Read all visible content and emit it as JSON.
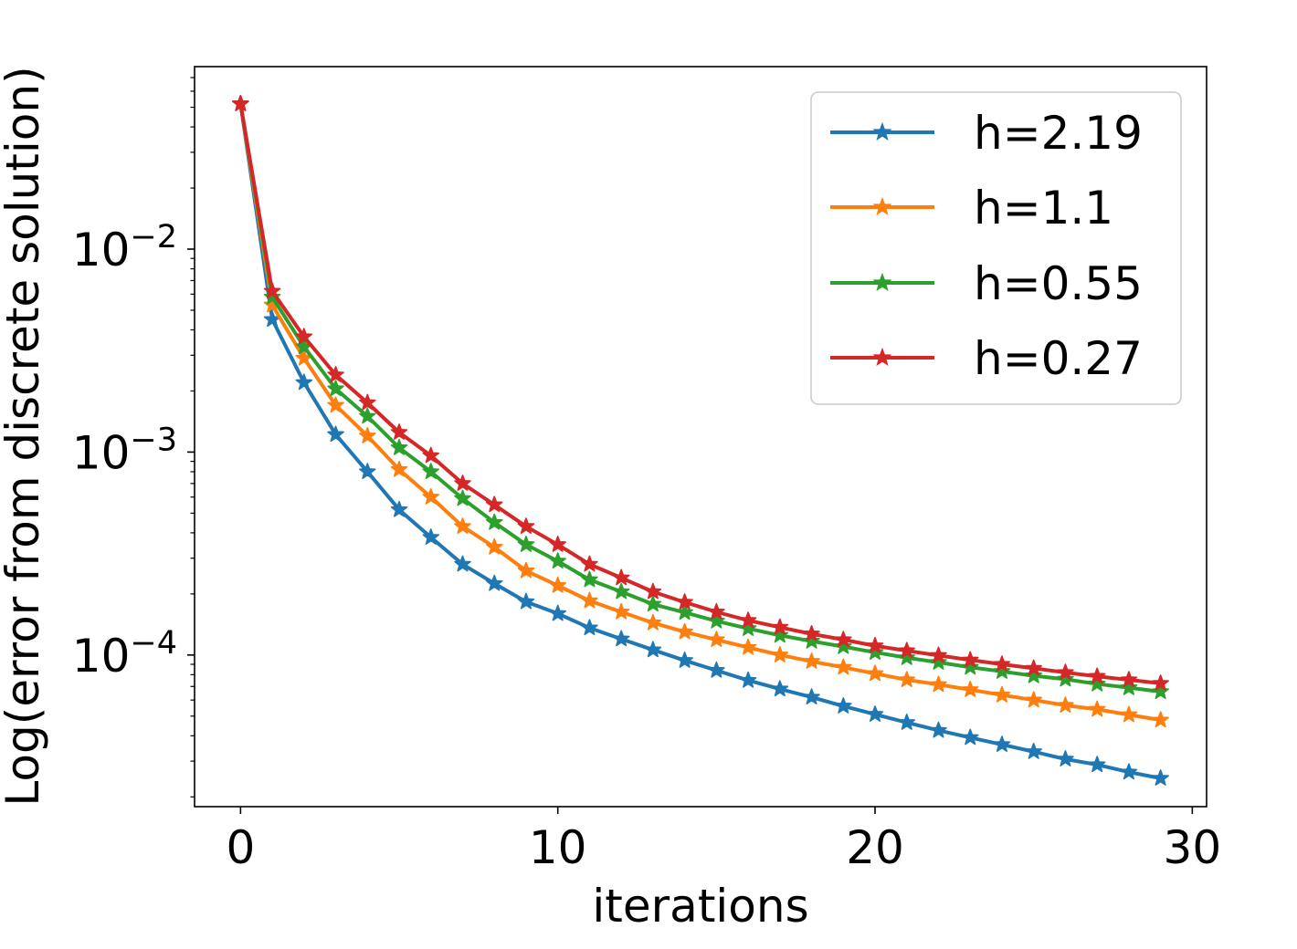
{
  "chart_data": {
    "type": "line",
    "title": "",
    "xlabel": "iterations",
    "ylabel": "Log(error from discrete solution)",
    "yscale": "log",
    "xlim": [
      -1.45,
      30.45
    ],
    "ylim": [
      1.79e-05,
      0.0793
    ],
    "x_ticks": [
      0,
      10,
      20,
      30
    ],
    "x_tick_labels": [
      "0",
      "10",
      "20",
      "30"
    ],
    "y_ticks": [
      {
        "value": 0.01,
        "base": "10",
        "exponent": "−2"
      },
      {
        "value": 0.001,
        "base": "10",
        "exponent": "−3"
      },
      {
        "value": 0.0001,
        "base": "10",
        "exponent": "−4"
      }
    ],
    "legend_position": "top-right",
    "marker": "star",
    "x": [
      0,
      1,
      2,
      3,
      4,
      5,
      6,
      7,
      8,
      9,
      10,
      11,
      12,
      13,
      14,
      15,
      16,
      17,
      18,
      19,
      20,
      21,
      22,
      23,
      24,
      25,
      26,
      27,
      28,
      29
    ],
    "series": [
      {
        "name": "h=2.19",
        "color": "#1f77b4",
        "values": [
          0.052,
          0.0045,
          0.0022,
          0.00122,
          0.0008,
          0.00052,
          0.00038,
          0.00028,
          0.000225,
          0.000183,
          0.00016,
          0.000136,
          0.00012,
          0.000106,
          9.4e-05,
          8.4e-05,
          7.5e-05,
          6.8e-05,
          6.2e-05,
          5.6e-05,
          5.1e-05,
          4.65e-05,
          4.25e-05,
          3.92e-05,
          3.62e-05,
          3.34e-05,
          3.07e-05,
          2.88e-05,
          2.65e-05,
          2.47e-05
        ]
      },
      {
        "name": "h=1.1",
        "color": "#ff7f0e",
        "values": [
          0.052,
          0.0053,
          0.0029,
          0.0017,
          0.0012,
          0.00082,
          0.0006,
          0.00043,
          0.00034,
          0.00026,
          0.00022,
          0.000185,
          0.000163,
          0.000144,
          0.00013,
          0.000119,
          0.000109,
          0.0001,
          9.3e-05,
          8.7e-05,
          8.1e-05,
          7.55e-05,
          7.15e-05,
          6.75e-05,
          6.35e-05,
          6e-05,
          5.65e-05,
          5.4e-05,
          5.08e-05,
          4.78e-05
        ]
      },
      {
        "name": "h=0.55",
        "color": "#2ca02c",
        "values": [
          0.052,
          0.0058,
          0.0033,
          0.00205,
          0.0015,
          0.00105,
          0.0008,
          0.00059,
          0.00045,
          0.00035,
          0.00029,
          0.000235,
          0.000205,
          0.000178,
          0.000162,
          0.000147,
          0.000135,
          0.000125,
          0.000117,
          0.00011,
          0.000103,
          9.7e-05,
          9.2e-05,
          8.7e-05,
          8.3e-05,
          7.9e-05,
          7.6e-05,
          7.2e-05,
          6.9e-05,
          6.6e-05
        ]
      },
      {
        "name": "h=0.27",
        "color": "#d62728",
        "values": [
          0.052,
          0.0062,
          0.0037,
          0.0024,
          0.00175,
          0.00125,
          0.00096,
          0.0007,
          0.00055,
          0.00043,
          0.00035,
          0.00028,
          0.00024,
          0.000205,
          0.000182,
          0.000163,
          0.000148,
          0.000137,
          0.000127,
          0.000119,
          0.000111,
          0.000105,
          9.95e-05,
          9.45e-05,
          9e-05,
          8.6e-05,
          8.2e-05,
          7.85e-05,
          7.55e-05,
          7.25e-05
        ]
      }
    ]
  }
}
